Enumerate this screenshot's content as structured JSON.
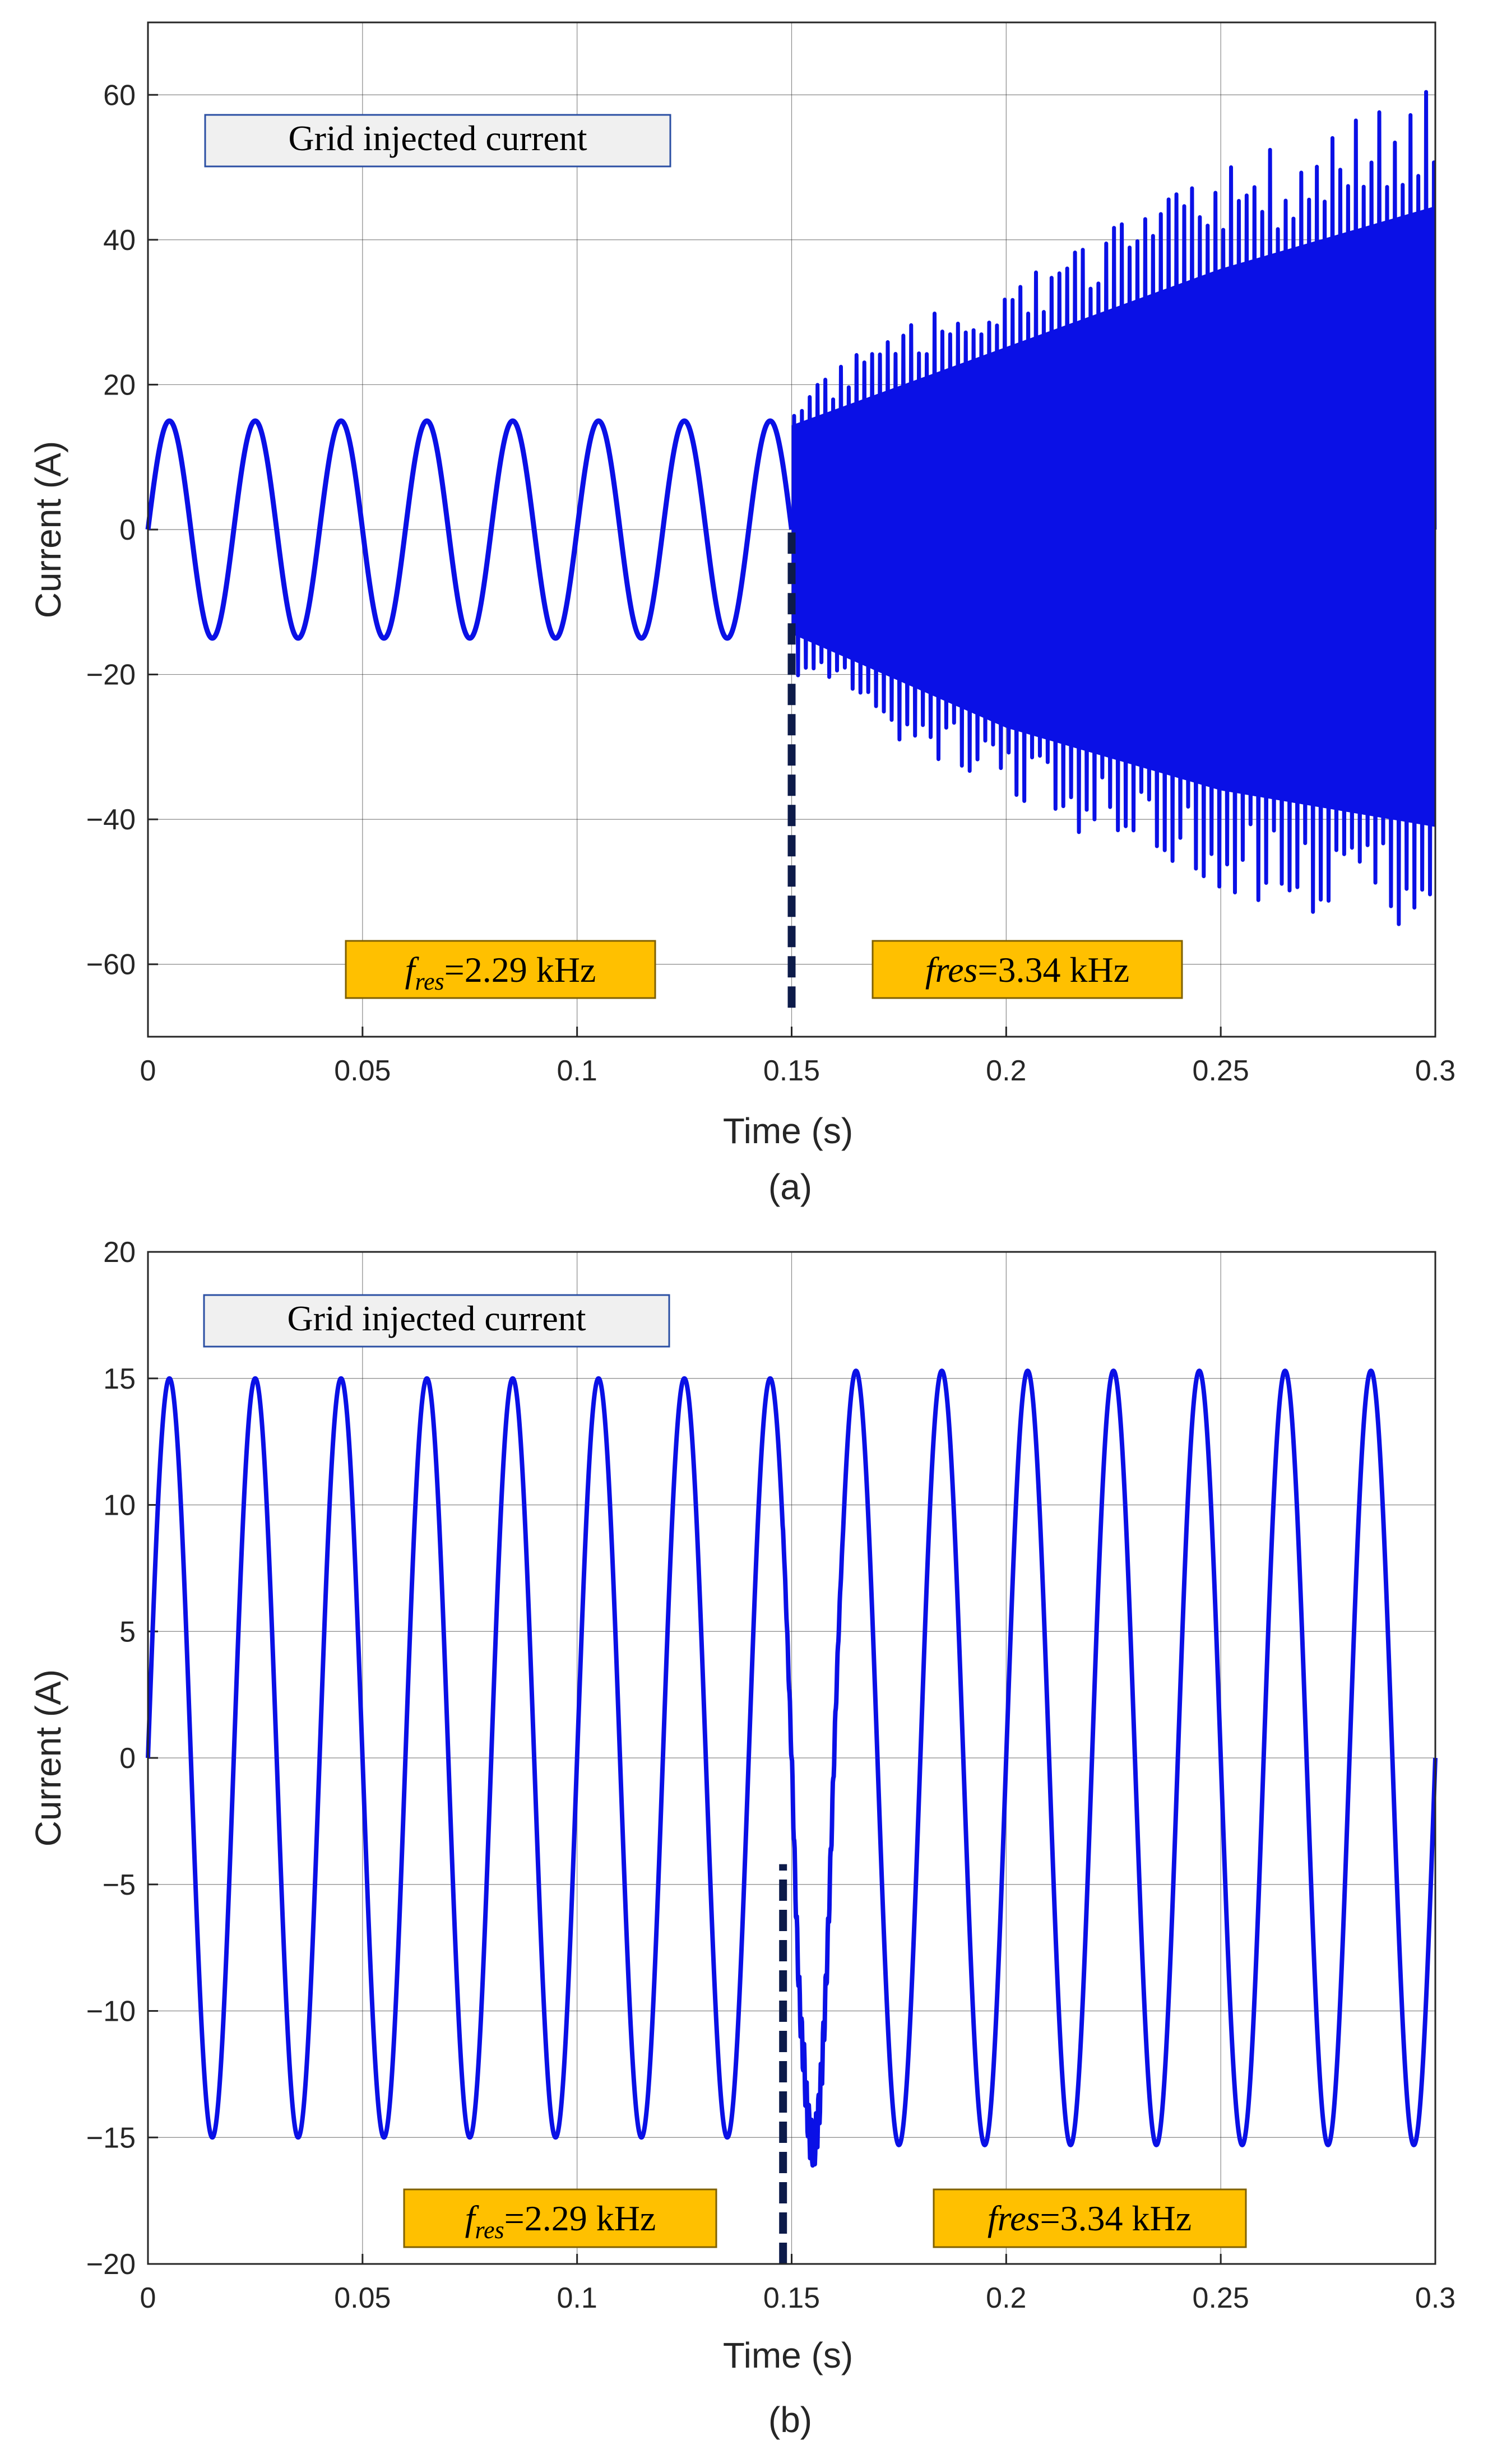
{
  "colors": {
    "signal": "#0a10e6",
    "marker": "#0d1b4a",
    "grid": "#262626",
    "title_box_fill": "#f0f0f0",
    "title_box_border": "#2b4fa3",
    "annotation_fill": "#ffc000",
    "annotation_border": "#7f6000"
  },
  "chart_data": [
    {
      "type": "line",
      "id": "a",
      "panel_label": "(a)",
      "xlabel": "Time (s)",
      "ylabel": "Current (A)",
      "xlim": [
        0,
        0.3
      ],
      "ylim": [
        -70,
        70
      ],
      "xticks": [
        0,
        0.05,
        0.1,
        0.15,
        0.2,
        0.25,
        0.3
      ],
      "xtick_labels": [
        "0",
        "0.05",
        "0.1",
        "0.15",
        "0.2",
        "0.25",
        "0.3"
      ],
      "yticks": [
        -60,
        -40,
        -20,
        0,
        20,
        40,
        60
      ],
      "ytick_labels": [
        "−60",
        "−40",
        "−20",
        "0",
        "20",
        "40",
        "60"
      ],
      "grid": true,
      "legend_box": "Grid injected current",
      "annotations": [
        {
          "base": "f",
          "sub": "res",
          "rest": "=2.29 kHz",
          "at": [
            0.045,
            -60
          ]
        },
        {
          "base": "fres",
          "sub": "",
          "rest": "=3.34 kHz",
          "at": [
            0.168,
            -60
          ]
        }
      ],
      "event_time": 0.15,
      "event_marker_y": [
        -66,
        0
      ],
      "series": [
        {
          "name": "Grid injected current",
          "fundamental_hz": 50,
          "amplitude_a": 15,
          "oscillation_start_s": 0.15,
          "oscillation_hz": 3340,
          "envelope_times_s": [
            0.15,
            0.2,
            0.25,
            0.3
          ],
          "envelope_peak_a": [
            20,
            35,
            50,
            62
          ],
          "envelope_trough_a": [
            -20,
            -38,
            -50,
            -57
          ]
        }
      ]
    },
    {
      "type": "line",
      "id": "b",
      "panel_label": "(b)",
      "xlabel": "Time (s)",
      "ylabel": "Current (A)",
      "xlim": [
        0,
        0.3
      ],
      "ylim": [
        -20,
        20
      ],
      "xticks": [
        0,
        0.05,
        0.1,
        0.15,
        0.2,
        0.25,
        0.3
      ],
      "xtick_labels": [
        "0",
        "0.05",
        "0.1",
        "0.15",
        "0.2",
        "0.25",
        "0.3"
      ],
      "yticks": [
        -20,
        -15,
        -10,
        -5,
        0,
        5,
        10,
        15,
        20
      ],
      "ytick_labels": [
        "−20",
        "−15",
        "−10",
        "−5",
        "0",
        "5",
        "10",
        "15",
        "20"
      ],
      "grid": true,
      "legend_box": "Grid injected current",
      "annotations": [
        {
          "base": "f",
          "sub": "res",
          "rest": "=2.29 kHz",
          "at": [
            0.058,
            -17.5
          ]
        },
        {
          "base": "fres",
          "sub": "",
          "rest": "=3.34 kHz",
          "at": [
            0.183,
            -17.5
          ]
        }
      ],
      "event_time": 0.148,
      "event_marker_y": [
        -20,
        -4.2
      ],
      "series": [
        {
          "name": "Grid injected current",
          "fundamental_hz": 50,
          "amplitude_a": 15,
          "post_event_amplitude_a": 15.3,
          "transient_window_s": [
            0.148,
            0.162
          ],
          "transient_peak_a": 15.8,
          "transient_trough_a": -16
        }
      ]
    }
  ]
}
